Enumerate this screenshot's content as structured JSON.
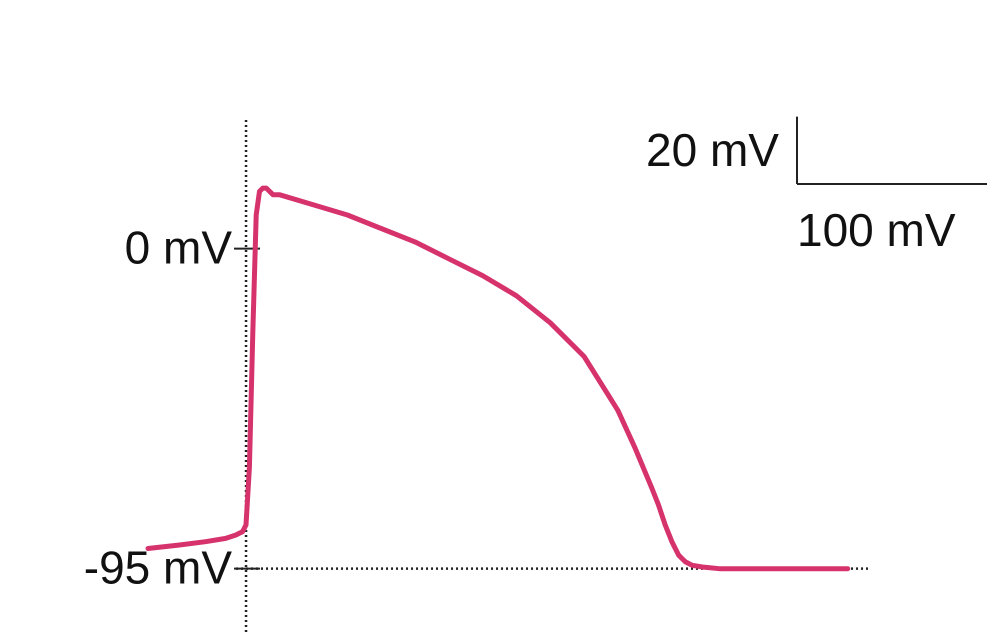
{
  "chart_data": {
    "type": "line",
    "title": "",
    "xlabel": "",
    "ylabel": "",
    "xlim": [
      -29,
      184
    ],
    "ylim": [
      -104.6,
      29
    ],
    "series": [
      {
        "name": "",
        "color": "#d6336c",
        "x": [
          -29,
          -20,
          -12,
          -6,
          -3,
          -1,
          0,
          1,
          2,
          3,
          4,
          5,
          6,
          8,
          10,
          20,
          30,
          40,
          50,
          60,
          70,
          80,
          90,
          100,
          110,
          115,
          120,
          122,
          124,
          126,
          127,
          128,
          129,
          130,
          132,
          135,
          140,
          150,
          160,
          170,
          178
        ],
        "y": [
          -89,
          -88,
          -87,
          -86,
          -85,
          -84,
          -82,
          -65,
          -25,
          10,
          17,
          18,
          18,
          16,
          16,
          13,
          10,
          6,
          2,
          -3,
          -8,
          -14,
          -22,
          -32,
          -48,
          -59,
          -71,
          -76,
          -82,
          -87,
          -89,
          -91,
          -92,
          -93,
          -94,
          -94.5,
          -95,
          -95,
          -95,
          -95,
          -95
        ]
      }
    ],
    "reference_lines": {
      "resting_level_label": "-95 mV",
      "zero_level_label": "0 mV",
      "zero_tick_value": 0,
      "resting_value": -95
    },
    "scale_bar": {
      "vertical_label": "20 mV",
      "horizontal_label": "100 mV",
      "vertical_value": 20,
      "horizontal_value": 100
    }
  }
}
